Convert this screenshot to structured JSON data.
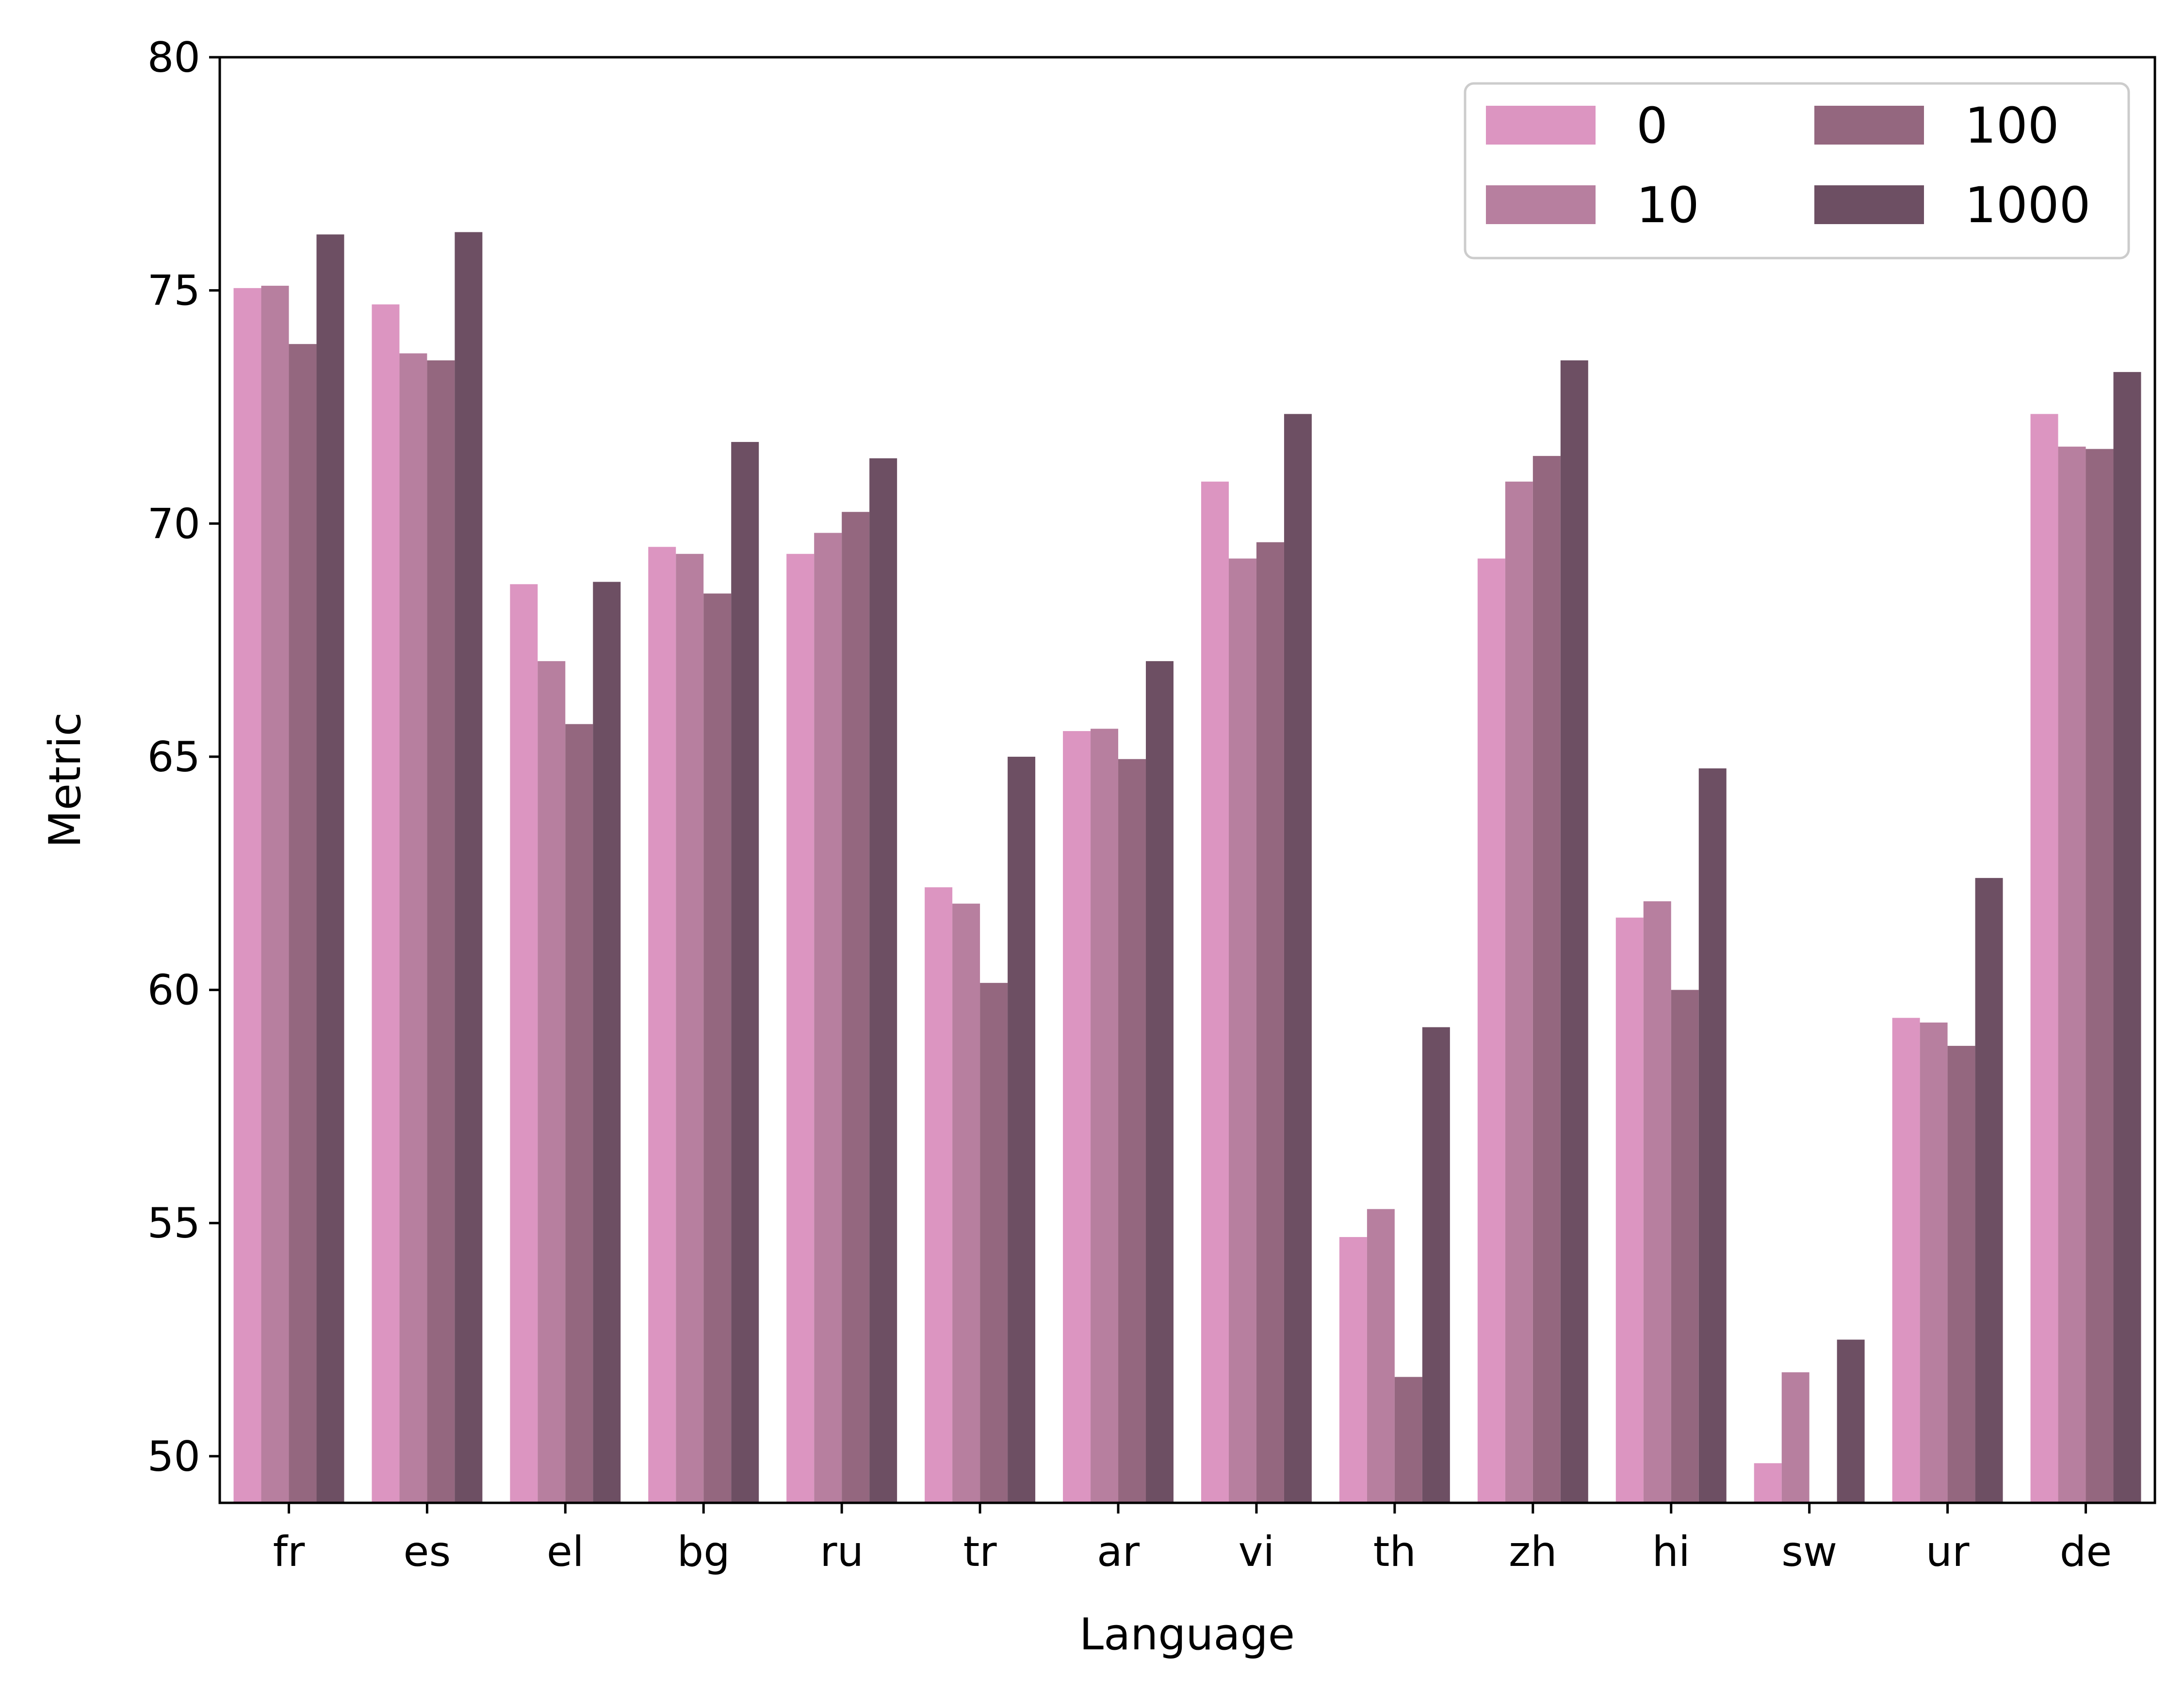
{
  "chart_data": {
    "type": "bar",
    "title": "",
    "xlabel": "Language",
    "ylabel": "Metric",
    "ylim": [
      49,
      80
    ],
    "yticks": [
      50,
      55,
      60,
      65,
      70,
      75,
      80
    ],
    "categories": [
      "fr",
      "es",
      "el",
      "bg",
      "ru",
      "tr",
      "ar",
      "vi",
      "th",
      "zh",
      "hi",
      "sw",
      "ur",
      "de"
    ],
    "series": [
      {
        "name": "0",
        "color": "#dc95c1",
        "values": [
          75.05,
          74.7,
          68.7,
          69.5,
          69.35,
          62.2,
          65.55,
          70.9,
          54.7,
          69.25,
          61.55,
          49.85,
          59.4,
          72.35
        ]
      },
      {
        "name": "10",
        "color": "#b77f9f",
        "values": [
          75.1,
          73.65,
          67.05,
          69.35,
          69.8,
          61.85,
          65.6,
          69.25,
          55.3,
          70.9,
          61.9,
          51.8,
          59.3,
          71.65
        ]
      },
      {
        "name": "100",
        "color": "#94677f",
        "values": [
          73.85,
          73.5,
          65.7,
          68.5,
          70.25,
          60.15,
          64.95,
          69.6,
          51.7,
          71.45,
          60.0,
          null,
          58.8,
          71.6
        ]
      },
      {
        "name": "1000",
        "color": "#6d4f63",
        "values": [
          76.2,
          76.25,
          68.75,
          71.75,
          71.4,
          65.0,
          67.05,
          72.35,
          59.2,
          73.5,
          64.75,
          52.5,
          62.4,
          73.25
        ]
      }
    ],
    "legend": {
      "position": "top-right",
      "columns": 2
    },
    "grid": false
  }
}
